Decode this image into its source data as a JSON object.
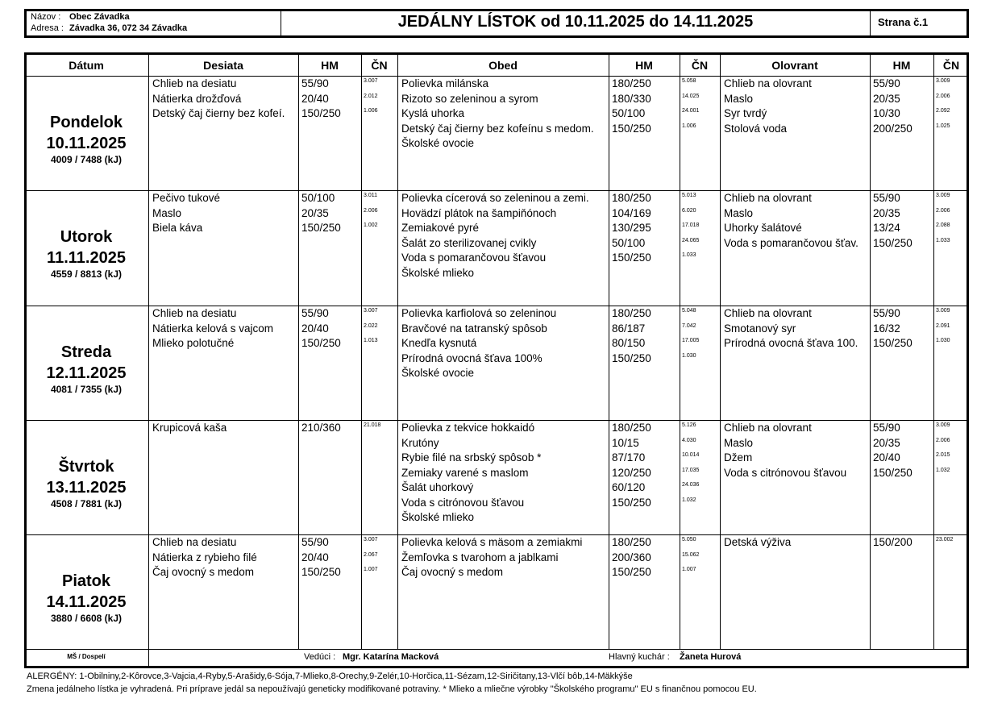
{
  "header": {
    "name_label": "Názov :",
    "name": "Obec Závadka",
    "address_label": "Adresa :",
    "address": "Závadka 36, 072 34 Závadka",
    "title": "JEDÁLNY LÍSTOK od 10.11.2025 do 14.11.2025",
    "page": "Strana č.1"
  },
  "table": {
    "columns": [
      "Dátum",
      "Desiata",
      "HM",
      "ČN",
      "Obed",
      "HM",
      "ČN",
      "Olovrant",
      "HM",
      "ČN"
    ],
    "days": [
      {
        "day": "Pondelok",
        "date": "10.11.2025",
        "energy": "4009 / 7488 (kJ)",
        "desiata": [
          {
            "name": "Chlieb na desiatu",
            "hm": "55/90",
            "cn": "3.007"
          },
          {
            "name": "Nátierka drožďová",
            "hm": "20/40",
            "cn": "2.012"
          },
          {
            "name": "Detský čaj čierny bez kofeí.",
            "hm": "150/250",
            "cn": "1.006"
          }
        ],
        "obed": [
          {
            "name": "Polievka milánska",
            "hm": "180/250",
            "cn": "5.058"
          },
          {
            "name": "Rizoto so zeleninou a syrom",
            "hm": "180/330",
            "cn": "14.025"
          },
          {
            "name": "Kyslá uhorka",
            "hm": "50/100",
            "cn": "24.001"
          },
          {
            "name": "Detský čaj čierny bez kofeínu s medom.",
            "hm": "150/250",
            "cn": "1.006"
          },
          {
            "name": "Školské ovocie"
          }
        ],
        "olovrant": [
          {
            "name": "Chlieb na olovrant",
            "hm": "55/90",
            "cn": "3.009"
          },
          {
            "name": "Maslo",
            "hm": "20/35",
            "cn": "2.006"
          },
          {
            "name": "Syr tvrdý",
            "hm": "10/30",
            "cn": "2.092"
          },
          {
            "name": "Stolová voda",
            "hm": "200/250",
            "cn": "1.025"
          }
        ]
      },
      {
        "day": "Utorok",
        "date": "11.11.2025",
        "energy": "4559 / 8813 (kJ)",
        "desiata": [
          {
            "name": "Pečivo tukové",
            "hm": "50/100",
            "cn": "3.011"
          },
          {
            "name": "Maslo",
            "hm": "20/35",
            "cn": "2.006"
          },
          {
            "name": "Biela káva",
            "hm": "150/250",
            "cn": "1.002"
          }
        ],
        "obed": [
          {
            "name": "Polievka cícerová so zeleninou a zemi.",
            "hm": "180/250",
            "cn": "5.013"
          },
          {
            "name": "Hovädzí plátok na šampiňónoch",
            "hm": "104/169",
            "cn": "6.020"
          },
          {
            "name": "Zemiakové pyré",
            "hm": "130/295",
            "cn": "17.018"
          },
          {
            "name": "Šalát zo sterilizovanej cvikly",
            "hm": "50/100",
            "cn": "24.065"
          },
          {
            "name": "Voda s pomarančovou šťavou",
            "hm": "150/250",
            "cn": "1.033"
          },
          {
            "name": "Školské mlieko"
          }
        ],
        "olovrant": [
          {
            "name": "Chlieb na olovrant",
            "hm": "55/90",
            "cn": "3.009"
          },
          {
            "name": "Maslo",
            "hm": "20/35",
            "cn": "2.006"
          },
          {
            "name": "Uhorky šalátové",
            "hm": "13/24",
            "cn": "2.088"
          },
          {
            "name": "Voda s pomarančovou šťav.",
            "hm": "150/250",
            "cn": "1.033"
          }
        ]
      },
      {
        "day": "Streda",
        "date": "12.11.2025",
        "energy": "4081 / 7355 (kJ)",
        "desiata": [
          {
            "name": "Chlieb na desiatu",
            "hm": "55/90",
            "cn": "3.007"
          },
          {
            "name": "Nátierka kelová s vajcom",
            "hm": "20/40",
            "cn": "2.022"
          },
          {
            "name": "Mlieko polotučné",
            "hm": "150/250",
            "cn": "1.013"
          }
        ],
        "obed": [
          {
            "name": "Polievka karfiolová so zeleninou",
            "hm": "180/250",
            "cn": "5.048"
          },
          {
            "name": "Bravčové na tatranský spôsob",
            "hm": "86/187",
            "cn": "7.042"
          },
          {
            "name": "Knedľa kysnutá",
            "hm": "80/150",
            "cn": "17.005"
          },
          {
            "name": "Prírodná ovocná šťava 100%",
            "hm": "150/250",
            "cn": "1.030"
          },
          {
            "name": "Školské ovocie"
          }
        ],
        "olovrant": [
          {
            "name": "Chlieb na olovrant",
            "hm": "55/90",
            "cn": "3.009"
          },
          {
            "name": "Smotanový syr",
            "hm": "16/32",
            "cn": "2.091"
          },
          {
            "name": "Prírodná ovocná šťava 100.",
            "hm": "150/250",
            "cn": "1.030"
          }
        ]
      },
      {
        "day": "Štvrtok",
        "date": "13.11.2025",
        "energy": "4508 / 7881 (kJ)",
        "desiata": [
          {
            "name": "Krupicová kaša",
            "hm": "210/360",
            "cn": "21.018"
          }
        ],
        "obed": [
          {
            "name": "Polievka z tekvice hokkaidó",
            "hm": "180/250",
            "cn": "5.126"
          },
          {
            "name": "Krutóny",
            "hm": "10/15",
            "cn": "4.030"
          },
          {
            "name": "Rybie filé na srbský spôsob *",
            "hm": "87/170",
            "cn": "10.014"
          },
          {
            "name": "Zemiaky varené s maslom",
            "hm": "120/250",
            "cn": "17.035"
          },
          {
            "name": "Šalát uhorkový",
            "hm": "60/120",
            "cn": "24.036"
          },
          {
            "name": "Voda s citrónovou šťavou",
            "hm": "150/250",
            "cn": "1.032"
          },
          {
            "name": "Školské mlieko"
          }
        ],
        "olovrant": [
          {
            "name": "Chlieb na olovrant",
            "hm": "55/90",
            "cn": "3.009"
          },
          {
            "name": "Maslo",
            "hm": "20/35",
            "cn": "2.006"
          },
          {
            "name": "Džem",
            "hm": "20/40",
            "cn": "2.015"
          },
          {
            "name": "Voda s citrónovou šťavou",
            "hm": "150/250",
            "cn": "1.032"
          }
        ]
      },
      {
        "day": "Piatok",
        "date": "14.11.2025",
        "energy": "3880 / 6608 (kJ)",
        "desiata": [
          {
            "name": "Chlieb na desiatu",
            "hm": "55/90",
            "cn": "3.007"
          },
          {
            "name": "Nátierka z rybieho filé",
            "hm": "20/40",
            "cn": "2.067"
          },
          {
            "name": "Čaj ovocný s medom",
            "hm": "150/250",
            "cn": "1.007"
          }
        ],
        "obed": [
          {
            "name": "Polievka kelová s mäsom a zemiakmi",
            "hm": "180/250",
            "cn": "5.050"
          },
          {
            "name": "Žemľovka s tvarohom a jablkami",
            "hm": "200/360",
            "cn": "15.062"
          },
          {
            "name": "Čaj ovocný s medom",
            "hm": "150/250",
            "cn": "1.007"
          }
        ],
        "olovrant": [
          {
            "name": "Detská výživa",
            "hm": "150/200",
            "cn": "23.002"
          }
        ]
      }
    ],
    "footer": {
      "group": "MŠ / Dospelí",
      "manager_label": "Vedúci :",
      "manager": "Mgr. Katarína Macková",
      "cook_label": "Hlavný kuchár :",
      "cook": "Žaneta Hurová"
    }
  },
  "notes": {
    "allergens": "ALERGÉNY: 1-Obilniny,2-Kôrovce,3-Vajcia,4-Ryby,5-Arašidy,6-Sója,7-Mlieko,8-Orechy,9-Zelér,10-Horčica,11-Sézam,12-Siričitany,13-Vlčí bôb,14-Mäkkýše",
    "disclaimer": "Zmena jedálneho lístka je vyhradená. Pri príprave jedál sa nepoužívajú geneticky modifikované potraviny. * Mlieko a mliečne výrobky \"Školského programu\" EU s finančnou pomocou EU."
  }
}
